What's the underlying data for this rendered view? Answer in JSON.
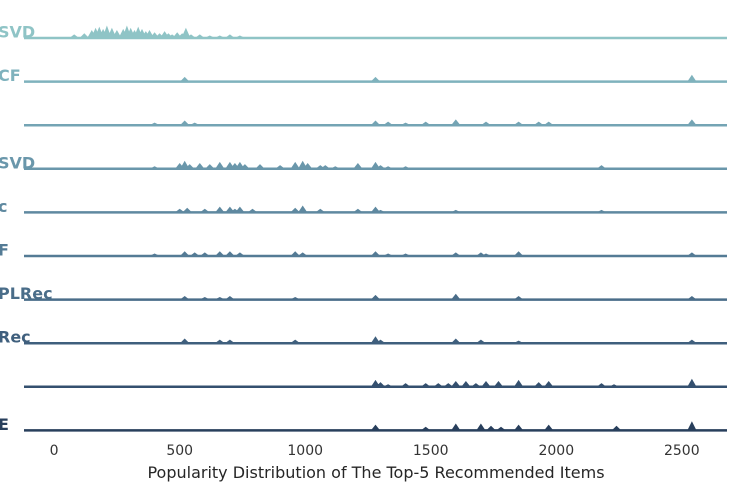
{
  "chart_data": {
    "type": "area",
    "subtype": "ridgeline",
    "xlabel": "Popularity Distribution of The Top-5 Recommended Items",
    "ylabel": "",
    "xlim": [
      -120,
      2680
    ],
    "xticks": [
      0,
      500,
      1000,
      1500,
      2000,
      2500
    ],
    "grid": false,
    "legend": "none",
    "series": [
      {
        "name": "SVD",
        "color": "#8fc4c6",
        "peaks": [
          [
            80,
            3
          ],
          [
            120,
            4
          ],
          [
            150,
            7
          ],
          [
            165,
            9
          ],
          [
            180,
            10
          ],
          [
            195,
            8
          ],
          [
            210,
            11
          ],
          [
            230,
            9
          ],
          [
            250,
            7
          ],
          [
            275,
            8
          ],
          [
            290,
            11
          ],
          [
            305,
            9
          ],
          [
            320,
            7
          ],
          [
            335,
            10
          ],
          [
            350,
            8
          ],
          [
            365,
            6
          ],
          [
            380,
            7
          ],
          [
            400,
            5
          ],
          [
            420,
            4
          ],
          [
            440,
            6
          ],
          [
            455,
            4
          ],
          [
            470,
            3
          ],
          [
            490,
            5
          ],
          [
            510,
            4
          ],
          [
            525,
            9
          ],
          [
            545,
            3
          ],
          [
            580,
            3
          ],
          [
            620,
            2
          ],
          [
            660,
            2
          ],
          [
            700,
            3
          ],
          [
            740,
            2
          ]
        ]
      },
      {
        "name": "CF",
        "color": "#7fb2bd",
        "peaks": [
          [
            520,
            4
          ],
          [
            1280,
            4
          ],
          [
            2540,
            6
          ]
        ]
      },
      {
        "name": "",
        "color": "#74a4b4",
        "peaks": [
          [
            400,
            2
          ],
          [
            520,
            4
          ],
          [
            560,
            2
          ],
          [
            1280,
            4
          ],
          [
            1330,
            3
          ],
          [
            1400,
            2
          ],
          [
            1480,
            3
          ],
          [
            1600,
            5
          ],
          [
            1720,
            3
          ],
          [
            1850,
            3
          ],
          [
            1930,
            3
          ],
          [
            1970,
            3
          ],
          [
            2540,
            5
          ]
        ]
      },
      {
        "name": "SVD",
        "color": "#6a97ab",
        "peaks": [
          [
            400,
            2
          ],
          [
            500,
            5
          ],
          [
            520,
            7
          ],
          [
            540,
            4
          ],
          [
            580,
            5
          ],
          [
            620,
            4
          ],
          [
            660,
            6
          ],
          [
            700,
            6
          ],
          [
            720,
            5
          ],
          [
            740,
            6
          ],
          [
            760,
            4
          ],
          [
            820,
            4
          ],
          [
            900,
            3
          ],
          [
            960,
            6
          ],
          [
            990,
            7
          ],
          [
            1010,
            5
          ],
          [
            1060,
            3
          ],
          [
            1080,
            3
          ],
          [
            1120,
            2
          ],
          [
            1210,
            5
          ],
          [
            1280,
            6
          ],
          [
            1300,
            3
          ],
          [
            1330,
            2
          ],
          [
            1400,
            2
          ],
          [
            2180,
            3
          ]
        ]
      },
      {
        "name": "c",
        "color": "#5f89a0",
        "peaks": [
          [
            500,
            3
          ],
          [
            530,
            4
          ],
          [
            600,
            3
          ],
          [
            660,
            5
          ],
          [
            700,
            5
          ],
          [
            720,
            3
          ],
          [
            740,
            5
          ],
          [
            790,
            3
          ],
          [
            960,
            4
          ],
          [
            990,
            6
          ],
          [
            1060,
            3
          ],
          [
            1210,
            3
          ],
          [
            1280,
            5
          ],
          [
            1300,
            2
          ],
          [
            1600,
            2
          ],
          [
            2180,
            2
          ]
        ]
      },
      {
        "name": "F",
        "color": "#547b95",
        "peaks": [
          [
            400,
            2
          ],
          [
            520,
            4
          ],
          [
            560,
            3
          ],
          [
            600,
            3
          ],
          [
            660,
            4
          ],
          [
            700,
            4
          ],
          [
            740,
            3
          ],
          [
            960,
            4
          ],
          [
            990,
            3
          ],
          [
            1280,
            4
          ],
          [
            1330,
            2
          ],
          [
            1400,
            2
          ],
          [
            1600,
            3
          ],
          [
            1700,
            3
          ],
          [
            1720,
            2
          ],
          [
            1850,
            4
          ],
          [
            2540,
            3
          ]
        ]
      },
      {
        "name": "PLRec",
        "color": "#4a6d89",
        "peaks": [
          [
            520,
            3
          ],
          [
            600,
            2
          ],
          [
            660,
            2
          ],
          [
            700,
            3
          ],
          [
            960,
            2
          ],
          [
            1280,
            4
          ],
          [
            1600,
            5
          ],
          [
            1850,
            3
          ],
          [
            2540,
            3
          ]
        ]
      },
      {
        "name": "Rec",
        "color": "#3f5f7d",
        "peaks": [
          [
            520,
            4
          ],
          [
            660,
            3
          ],
          [
            700,
            3
          ],
          [
            960,
            3
          ],
          [
            1280,
            6
          ],
          [
            1300,
            3
          ],
          [
            1600,
            4
          ],
          [
            1700,
            3
          ],
          [
            1850,
            2
          ],
          [
            2540,
            3
          ]
        ]
      },
      {
        "name": "",
        "color": "#34506f",
        "peaks": [
          [
            1280,
            6
          ],
          [
            1300,
            4
          ],
          [
            1330,
            2
          ],
          [
            1400,
            3
          ],
          [
            1480,
            3
          ],
          [
            1530,
            3
          ],
          [
            1570,
            3
          ],
          [
            1600,
            5
          ],
          [
            1640,
            5
          ],
          [
            1680,
            3
          ],
          [
            1720,
            5
          ],
          [
            1770,
            5
          ],
          [
            1850,
            6
          ],
          [
            1930,
            4
          ],
          [
            1970,
            5
          ],
          [
            2180,
            3
          ],
          [
            2230,
            2
          ],
          [
            2540,
            7
          ]
        ]
      },
      {
        "name": "E",
        "color": "#283f5c",
        "peaks": [
          [
            1280,
            5
          ],
          [
            1480,
            3
          ],
          [
            1600,
            6
          ],
          [
            1700,
            6
          ],
          [
            1740,
            4
          ],
          [
            1780,
            3
          ],
          [
            1850,
            5
          ],
          [
            1970,
            5
          ],
          [
            2240,
            4
          ],
          [
            2540,
            8
          ]
        ]
      }
    ]
  }
}
